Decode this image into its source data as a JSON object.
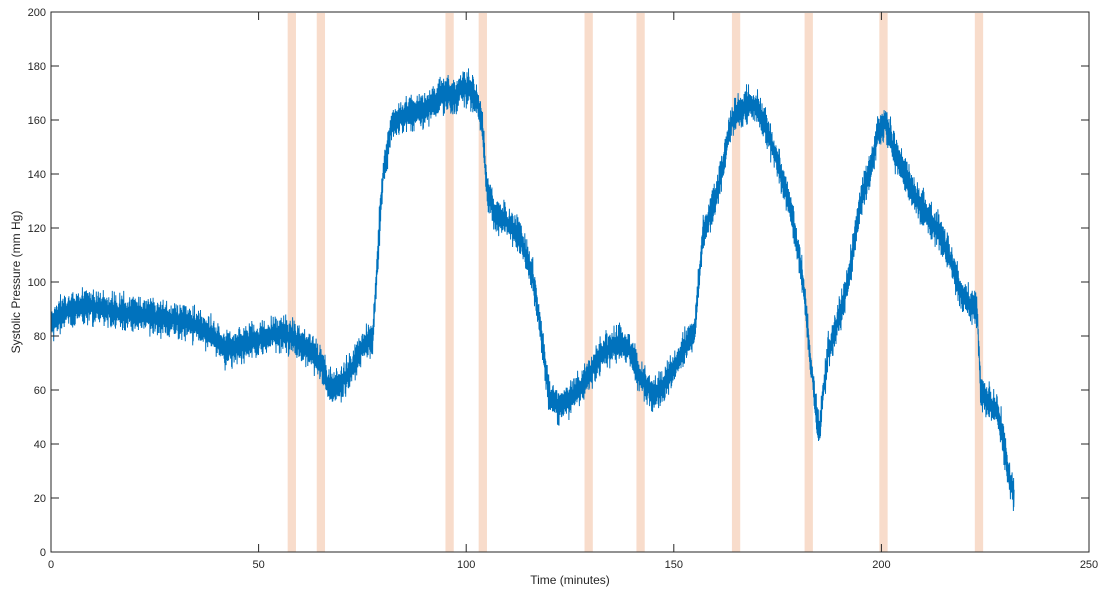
{
  "chart_data": {
    "type": "line",
    "title": "",
    "xlabel": "Time (minutes)",
    "ylabel": "Systolic Pressure (mm Hg)",
    "xlim": [
      0,
      250
    ],
    "ylim": [
      0,
      200
    ],
    "xticks": [
      0,
      50,
      100,
      150,
      200,
      250
    ],
    "yticks": [
      0,
      20,
      40,
      60,
      80,
      100,
      120,
      140,
      160,
      180,
      200
    ],
    "grid": false,
    "legend": "none",
    "colors": {
      "line": "#0072bd",
      "band": "#f8dccb",
      "axes": "#262626"
    },
    "series": [
      {
        "x": [
          0,
          2,
          5,
          10,
          15,
          20,
          25,
          30,
          35,
          40,
          42,
          45,
          50,
          55,
          58,
          60,
          63,
          65,
          67,
          70,
          73,
          76,
          77.5,
          78,
          79,
          80,
          82,
          85,
          88,
          90,
          92,
          94,
          95,
          97,
          99,
          101,
          103,
          104,
          105,
          107,
          110,
          113,
          116,
          118,
          120,
          122,
          125,
          127,
          129,
          131,
          133,
          135,
          137,
          139,
          141,
          143,
          145,
          147,
          150,
          152,
          155,
          157,
          160,
          162,
          164,
          166,
          168,
          170,
          172,
          175,
          178,
          181,
          183,
          185,
          187,
          190,
          192,
          195,
          198,
          199,
          201,
          203,
          205,
          208,
          211,
          214,
          217,
          219,
          221,
          223,
          224,
          226,
          228,
          229,
          230,
          231,
          232
        ],
        "y": [
          85,
          88,
          90,
          91,
          89,
          88,
          87,
          86,
          84,
          79,
          75,
          76,
          79,
          81,
          80,
          77,
          74,
          70,
          61,
          62,
          70,
          78,
          79,
          92,
          118,
          140,
          158,
          162,
          163,
          164,
          167,
          169,
          170,
          168,
          172,
          171,
          166,
          155,
          135,
          125,
          122,
          117,
          102,
          82,
          57,
          54,
          56,
          60,
          64,
          70,
          74,
          76,
          78,
          75,
          68,
          62,
          59,
          60,
          68,
          74,
          82,
          118,
          130,
          145,
          160,
          164,
          166,
          164,
          158,
          145,
          128,
          102,
          70,
          44,
          73,
          88,
          100,
          130,
          145,
          155,
          160,
          149,
          142,
          132,
          125,
          118,
          107,
          96,
          92,
          90,
          58,
          55,
          52,
          45,
          35,
          26,
          20
        ]
      }
    ],
    "bands": [
      [
        57,
        59
      ],
      [
        64,
        66
      ],
      [
        95,
        97
      ],
      [
        103,
        105
      ],
      [
        128.5,
        130.5
      ],
      [
        141,
        143
      ],
      [
        164,
        166
      ],
      [
        181.5,
        183.5
      ],
      [
        199.5,
        201.5
      ],
      [
        222.5,
        224.5
      ]
    ]
  }
}
